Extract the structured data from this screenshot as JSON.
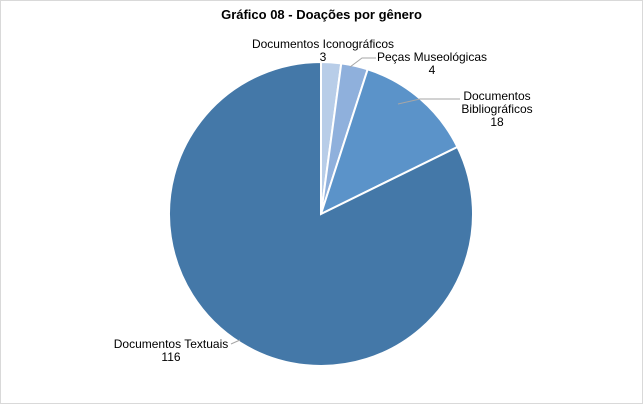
{
  "chart_data": {
    "type": "pie",
    "title": "Gráfico 08 - Doações por gênero",
    "categories": [
      "Documentos Iconográficos",
      "Peças Museológicas",
      "Documentos Bibliográficos",
      "Documentos Textuais"
    ],
    "values": [
      3,
      4,
      18,
      116
    ],
    "colors": [
      "#b8cde8",
      "#8fb0dc",
      "#5b93c9",
      "#4478a8"
    ],
    "labels": [
      {
        "line1": "Documentos  Iconográficos",
        "line2": "3"
      },
      {
        "line1": "Peças Museológicas",
        "line2": "4"
      },
      {
        "line1": "Documentos",
        "line2": "Bibliográficos",
        "line3": "18"
      },
      {
        "line1": "Documentos  Textuais",
        "line2": "116"
      }
    ],
    "legend": "none"
  }
}
